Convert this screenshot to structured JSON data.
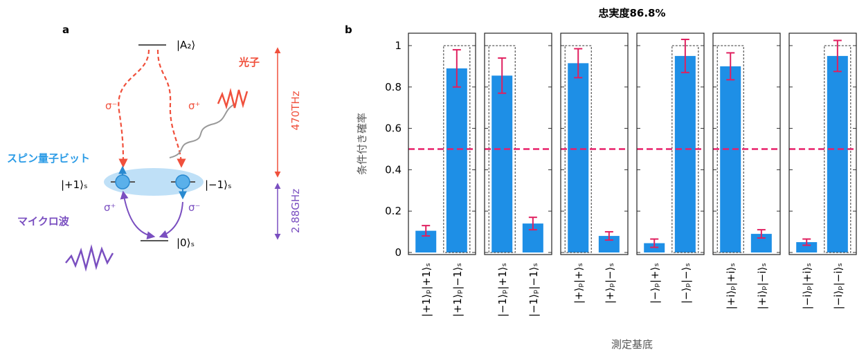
{
  "diagram": {
    "panel_label": "a",
    "excited": "|A₂⟩",
    "photon": "光子",
    "sigma_minus_top": "σ⁻",
    "sigma_plus_top": "σ⁺",
    "optical_freq": "470THz",
    "qubit": "スピン量子ビット",
    "plus": "|+1⟩ₛ",
    "minus": "|−1⟩ₛ",
    "sigma_plus_bottom": "σ⁺",
    "sigma_minus_bottom": "σ⁻",
    "microwave": "マイクロ波",
    "ground": "|0⟩ₛ",
    "microwave_freq": "2.88GHz"
  },
  "chart_data": {
    "type": "bar",
    "panel_label": "b",
    "title": "忠実度86.8%",
    "ylabel": "条件付き確率",
    "xlabel": "測定基底",
    "categories": [
      "|+1⟩ₚ|+1⟩ₛ",
      "|+1⟩ₚ|−1⟩ₛ",
      "|−1⟩ₚ|+1⟩ₛ",
      "|−1⟩ₚ|−1⟩ₛ",
      "|+⟩ₚ|+⟩ₛ",
      "|+⟩ₚ|−⟩ₛ",
      "|−⟩ₚ|+⟩ₛ",
      "|−⟩ₚ|−⟩ₛ",
      "|+i⟩ₚ|+i⟩ₛ",
      "|+i⟩ₚ|−i⟩ₛ",
      "|−i⟩ₚ|+i⟩ₛ",
      "|−i⟩ₚ|−i⟩ₛ"
    ],
    "values": [
      0.105,
      0.89,
      0.855,
      0.14,
      0.915,
      0.08,
      0.045,
      0.95,
      0.9,
      0.09,
      0.05,
      0.95
    ],
    "errors": [
      0.025,
      0.09,
      0.085,
      0.03,
      0.07,
      0.02,
      0.02,
      0.08,
      0.065,
      0.02,
      0.015,
      0.075
    ],
    "ideal": [
      null,
      1,
      1,
      null,
      1,
      null,
      null,
      1,
      1,
      null,
      null,
      1
    ],
    "threshold": 0.5,
    "color": "#1e8fe6",
    "error_color": "#e0205f",
    "threshold_color": "#e8206a",
    "ylim": [
      -0.01,
      1.06
    ],
    "yticks": [
      0,
      0.2,
      0.4,
      0.6,
      0.8,
      1
    ]
  }
}
